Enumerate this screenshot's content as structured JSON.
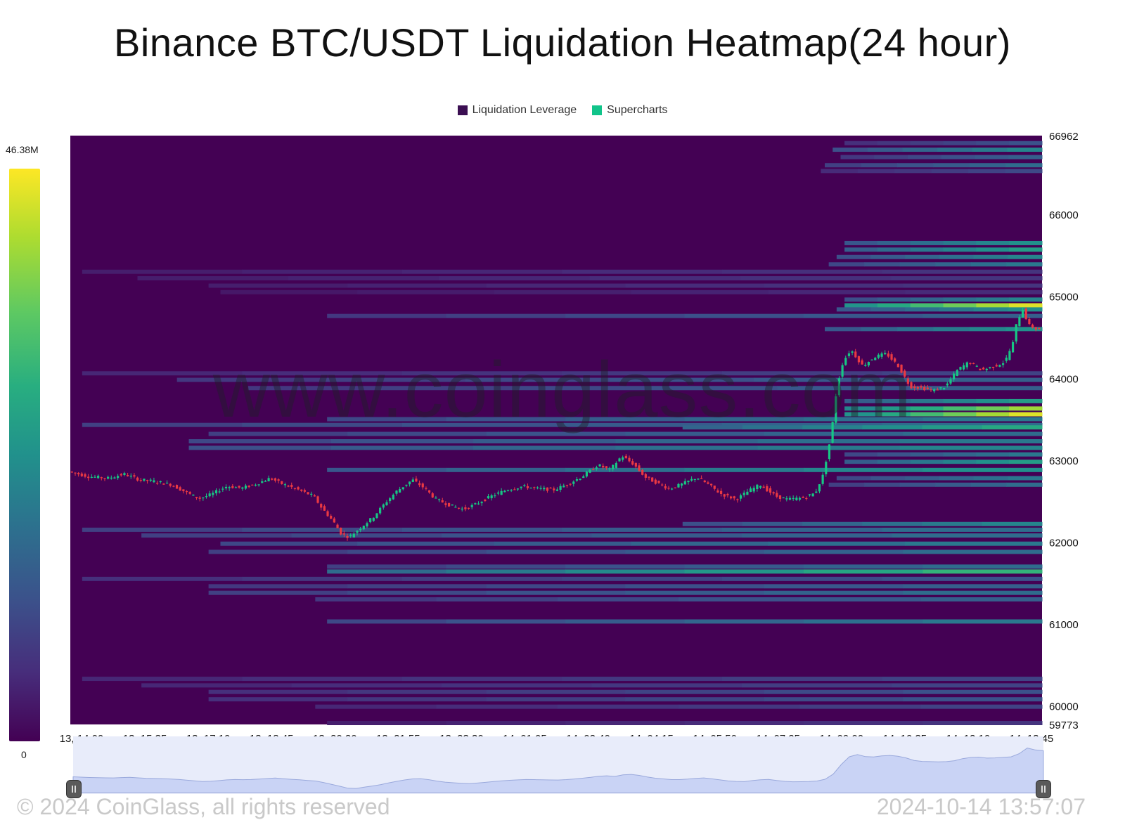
{
  "title": "Binance BTC/USDT Liquidation Heatmap(24 hour)",
  "legend": [
    {
      "label": "Liquidation Leverage",
      "color": "#3b0f52"
    },
    {
      "label": "Supercharts",
      "color": "#11c48a"
    }
  ],
  "colorscale": {
    "max_label": "46.38M",
    "min_label": "0",
    "max_value": 46.38
  },
  "watermark": "www.coinglass.com",
  "footer": {
    "copyright": "© 2024 CoinGlass, all rights reserved",
    "timestamp": "2024-10-14 13:57:07"
  },
  "chart_data": {
    "type": "heatmap",
    "x_tick_labels": [
      "13, 14:00",
      "13, 15:35",
      "13, 17:10",
      "13, 18:45",
      "13, 20:20",
      "13, 21:55",
      "13, 23:30",
      "14, 01:05",
      "14, 02:40",
      "14, 04:15",
      "14, 05:50",
      "14, 07:25",
      "14, 09:00",
      "14, 10:35",
      "14, 12:10",
      "14, 13:45"
    ],
    "x_range_hours": [
      0,
      24
    ],
    "y_tick_labels": [
      "66962",
      "66000",
      "65000",
      "64000",
      "63000",
      "62000",
      "61000",
      "60000",
      "59773"
    ],
    "y_ticks": [
      66962,
      66000,
      65000,
      64000,
      63000,
      62000,
      61000,
      60000,
      59773
    ],
    "ylim": [
      59773,
      66962
    ],
    "background_value": 0,
    "liquidation_bands": [
      {
        "price": 66870,
        "start_h": 19.6,
        "intensity": 0.25
      },
      {
        "price": 66790,
        "start_h": 19.3,
        "intensity": 0.45
      },
      {
        "price": 66700,
        "start_h": 19.5,
        "intensity": 0.3
      },
      {
        "price": 66600,
        "start_h": 19.1,
        "intensity": 0.35
      },
      {
        "price": 66530,
        "start_h": 19.0,
        "intensity": 0.22
      },
      {
        "price": 65650,
        "start_h": 19.6,
        "intensity": 0.5
      },
      {
        "price": 65570,
        "start_h": 19.6,
        "intensity": 0.55
      },
      {
        "price": 65480,
        "start_h": 19.4,
        "intensity": 0.45
      },
      {
        "price": 65390,
        "start_h": 19.2,
        "intensity": 0.4
      },
      {
        "price": 65300,
        "start_h": 0.3,
        "intensity": 0.15
      },
      {
        "price": 65220,
        "start_h": 1.7,
        "intensity": 0.15
      },
      {
        "price": 65130,
        "start_h": 3.5,
        "intensity": 0.15
      },
      {
        "price": 65050,
        "start_h": 3.8,
        "intensity": 0.12
      },
      {
        "price": 64960,
        "start_h": 19.6,
        "intensity": 0.45
      },
      {
        "price": 64890,
        "start_h": 19.6,
        "intensity": 0.95
      },
      {
        "price": 64840,
        "start_h": 19.4,
        "intensity": 0.5
      },
      {
        "price": 64760,
        "start_h": 6.5,
        "intensity": 0.3
      },
      {
        "price": 64600,
        "start_h": 19.1,
        "intensity": 0.5
      },
      {
        "price": 64060,
        "start_h": 0.3,
        "intensity": 0.2
      },
      {
        "price": 63980,
        "start_h": 2.7,
        "intensity": 0.3
      },
      {
        "price": 63880,
        "start_h": 4.5,
        "intensity": 0.3
      },
      {
        "price": 63720,
        "start_h": 19.6,
        "intensity": 0.55
      },
      {
        "price": 63630,
        "start_h": 19.6,
        "intensity": 0.85
      },
      {
        "price": 63560,
        "start_h": 19.6,
        "intensity": 0.95
      },
      {
        "price": 63500,
        "start_h": 6.5,
        "intensity": 0.4
      },
      {
        "price": 63430,
        "start_h": 0.3,
        "intensity": 0.35
      },
      {
        "price": 63400,
        "start_h": 15.5,
        "intensity": 0.6
      },
      {
        "price": 63320,
        "start_h": 3.5,
        "intensity": 0.35
      },
      {
        "price": 63230,
        "start_h": 3.0,
        "intensity": 0.4
      },
      {
        "price": 63150,
        "start_h": 3.0,
        "intensity": 0.45
      },
      {
        "price": 63070,
        "start_h": 19.6,
        "intensity": 0.4
      },
      {
        "price": 62980,
        "start_h": 19.6,
        "intensity": 0.55
      },
      {
        "price": 62880,
        "start_h": 6.5,
        "intensity": 0.5
      },
      {
        "price": 62780,
        "start_h": 19.4,
        "intensity": 0.4
      },
      {
        "price": 62700,
        "start_h": 19.2,
        "intensity": 0.35
      },
      {
        "price": 62220,
        "start_h": 15.5,
        "intensity": 0.45
      },
      {
        "price": 62150,
        "start_h": 0.3,
        "intensity": 0.35
      },
      {
        "price": 62080,
        "start_h": 1.8,
        "intensity": 0.35
      },
      {
        "price": 61980,
        "start_h": 3.8,
        "intensity": 0.4
      },
      {
        "price": 61880,
        "start_h": 3.5,
        "intensity": 0.35
      },
      {
        "price": 61700,
        "start_h": 6.5,
        "intensity": 0.35
      },
      {
        "price": 61640,
        "start_h": 6.5,
        "intensity": 0.65
      },
      {
        "price": 61550,
        "start_h": 0.3,
        "intensity": 0.25
      },
      {
        "price": 61460,
        "start_h": 3.5,
        "intensity": 0.3
      },
      {
        "price": 61380,
        "start_h": 3.5,
        "intensity": 0.35
      },
      {
        "price": 61300,
        "start_h": 6.2,
        "intensity": 0.3
      },
      {
        "price": 61030,
        "start_h": 6.5,
        "intensity": 0.4
      },
      {
        "price": 60330,
        "start_h": 0.3,
        "intensity": 0.2
      },
      {
        "price": 60250,
        "start_h": 1.8,
        "intensity": 0.2
      },
      {
        "price": 60170,
        "start_h": 3.5,
        "intensity": 0.25
      },
      {
        "price": 60080,
        "start_h": 3.5,
        "intensity": 0.25
      },
      {
        "price": 59990,
        "start_h": 6.2,
        "intensity": 0.2
      },
      {
        "price": 59790,
        "start_h": 6.5,
        "intensity": 0.15
      }
    ],
    "price_path": [
      [
        0,
        62860
      ],
      [
        0.5,
        62800
      ],
      [
        1.0,
        62780
      ],
      [
        1.4,
        62830
      ],
      [
        1.8,
        62760
      ],
      [
        2.2,
        62740
      ],
      [
        2.6,
        62700
      ],
      [
        3.0,
        62600
      ],
      [
        3.3,
        62530
      ],
      [
        3.6,
        62580
      ],
      [
        4.0,
        62680
      ],
      [
        4.4,
        62660
      ],
      [
        4.8,
        62720
      ],
      [
        5.1,
        62780
      ],
      [
        5.4,
        62710
      ],
      [
        5.8,
        62640
      ],
      [
        6.2,
        62560
      ],
      [
        6.4,
        62420
      ],
      [
        6.7,
        62250
      ],
      [
        6.9,
        62100
      ],
      [
        7.1,
        62060
      ],
      [
        7.4,
        62180
      ],
      [
        7.7,
        62300
      ],
      [
        8.0,
        62470
      ],
      [
        8.3,
        62620
      ],
      [
        8.7,
        62760
      ],
      [
        9.0,
        62660
      ],
      [
        9.3,
        62520
      ],
      [
        9.7,
        62440
      ],
      [
        10.0,
        62400
      ],
      [
        10.3,
        62460
      ],
      [
        10.7,
        62560
      ],
      [
        11.1,
        62640
      ],
      [
        11.5,
        62680
      ],
      [
        11.9,
        62650
      ],
      [
        12.3,
        62640
      ],
      [
        12.6,
        62700
      ],
      [
        13.0,
        62800
      ],
      [
        13.4,
        62940
      ],
      [
        13.7,
        62880
      ],
      [
        14.0,
        63050
      ],
      [
        14.3,
        62950
      ],
      [
        14.6,
        62790
      ],
      [
        14.9,
        62720
      ],
      [
        15.2,
        62650
      ],
      [
        15.5,
        62700
      ],
      [
        15.9,
        62790
      ],
      [
        16.2,
        62700
      ],
      [
        16.5,
        62590
      ],
      [
        16.9,
        62520
      ],
      [
        17.2,
        62620
      ],
      [
        17.5,
        62700
      ],
      [
        17.9,
        62560
      ],
      [
        18.2,
        62520
      ],
      [
        18.6,
        62540
      ],
      [
        18.9,
        62600
      ],
      [
        19.1,
        62820
      ],
      [
        19.3,
        63300
      ],
      [
        19.45,
        63900
      ],
      [
        19.6,
        64200
      ],
      [
        19.8,
        64350
      ],
      [
        20.1,
        64150
      ],
      [
        20.4,
        64260
      ],
      [
        20.7,
        64300
      ],
      [
        21.0,
        64150
      ],
      [
        21.3,
        63900
      ],
      [
        21.6,
        63880
      ],
      [
        21.9,
        63850
      ],
      [
        22.2,
        63900
      ],
      [
        22.5,
        64100
      ],
      [
        22.8,
        64200
      ],
      [
        23.1,
        64100
      ],
      [
        23.4,
        64140
      ],
      [
        23.7,
        64200
      ],
      [
        23.9,
        64420
      ],
      [
        24.0,
        64680
      ],
      [
        24.15,
        64850
      ],
      [
        24.3,
        64650
      ],
      [
        24.5,
        64600
      ]
    ]
  }
}
